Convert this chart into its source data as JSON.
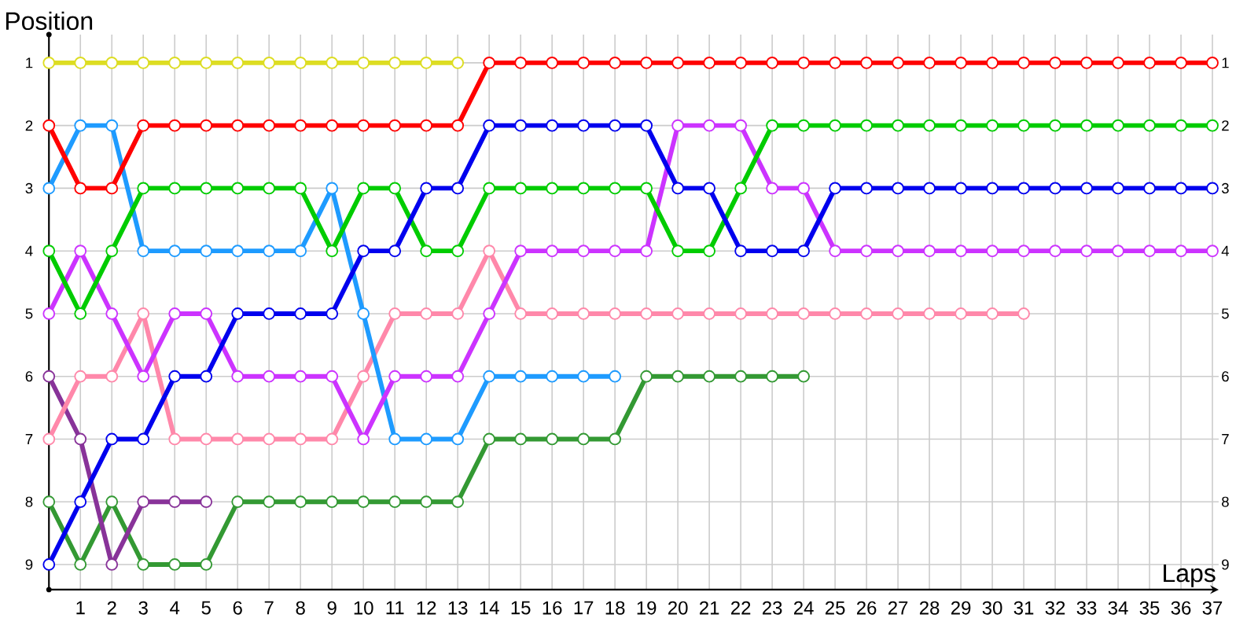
{
  "chart_data": {
    "type": "line",
    "xlabel": "Laps",
    "ylabel": "Position",
    "xlim": [
      0,
      37.2
    ],
    "ylim": [
      9.4,
      0.55
    ],
    "y2lim": [
      9.4,
      0.55
    ],
    "xticks": [
      1,
      2,
      3,
      4,
      5,
      6,
      7,
      8,
      9,
      10,
      11,
      12,
      13,
      14,
      15,
      16,
      17,
      18,
      19,
      20,
      21,
      22,
      23,
      24,
      25,
      26,
      27,
      28,
      29,
      30,
      31,
      32,
      33,
      34,
      35,
      36,
      37
    ],
    "yticks": [
      1,
      2,
      3,
      4,
      5,
      6,
      7,
      8,
      9
    ],
    "y2ticks": [
      1,
      2,
      3,
      4,
      5,
      6,
      7,
      8,
      9
    ],
    "grid": true,
    "marker": "circle",
    "line_style": "solid",
    "series": [
      {
        "color": "#dddd22",
        "x": [
          0,
          1,
          2,
          3,
          4,
          5,
          6,
          7,
          8,
          9,
          10,
          11,
          12,
          13
        ],
        "values": [
          1,
          1,
          1,
          1,
          1,
          1,
          1,
          1,
          1,
          1,
          1,
          1,
          1,
          1
        ]
      },
      {
        "color": "#339933",
        "x": [
          0,
          1,
          2,
          3,
          4,
          5,
          6,
          7,
          8,
          9,
          10,
          11,
          12,
          13,
          14,
          15,
          16,
          17,
          18,
          19,
          20,
          21,
          22,
          23,
          24
        ],
        "values": [
          8,
          9,
          8,
          9,
          9,
          9,
          8,
          8,
          8,
          8,
          8,
          8,
          8,
          8,
          7,
          7,
          7,
          7,
          7,
          6,
          6,
          6,
          6,
          6,
          6
        ]
      },
      {
        "color": "#883399",
        "x": [
          0,
          1,
          2,
          3,
          4,
          5
        ],
        "values": [
          6,
          7,
          9,
          8,
          8,
          8
        ]
      },
      {
        "color": "#ff88aa",
        "x": [
          0,
          1,
          2,
          3,
          4,
          5,
          6,
          7,
          8,
          9,
          10,
          11,
          12,
          13,
          14,
          15,
          16,
          17,
          18,
          19,
          20,
          21,
          22,
          23,
          24,
          25,
          26,
          27,
          28,
          29,
          30,
          31
        ],
        "values": [
          7,
          6,
          6,
          5,
          7,
          7,
          7,
          7,
          7,
          7,
          6,
          5,
          5,
          5,
          4,
          5,
          5,
          5,
          5,
          5,
          5,
          5,
          5,
          5,
          5,
          5,
          5,
          5,
          5,
          5,
          5,
          5
        ]
      },
      {
        "color": "#1e9bff",
        "x": [
          0,
          1,
          2,
          3,
          4,
          5,
          6,
          7,
          8,
          9,
          10,
          11,
          12,
          13,
          14,
          15,
          16,
          17,
          18
        ],
        "values": [
          3,
          2,
          2,
          4,
          4,
          4,
          4,
          4,
          4,
          3,
          5,
          7,
          7,
          7,
          6,
          6,
          6,
          6,
          6
        ]
      },
      {
        "color": "#cc33ff",
        "x": [
          0,
          1,
          2,
          3,
          4,
          5,
          6,
          7,
          8,
          9,
          10,
          11,
          12,
          13,
          14,
          15,
          16,
          17,
          18,
          19,
          20,
          21,
          22,
          23,
          24,
          25,
          26,
          27,
          28,
          29,
          30,
          31,
          32,
          33,
          34,
          35,
          36,
          37
        ],
        "values": [
          5,
          4,
          5,
          6,
          5,
          5,
          6,
          6,
          6,
          6,
          7,
          6,
          6,
          6,
          5,
          4,
          4,
          4,
          4,
          4,
          2,
          2,
          2,
          3,
          3,
          4,
          4,
          4,
          4,
          4,
          4,
          4,
          4,
          4,
          4,
          4,
          4,
          4
        ]
      },
      {
        "color": "#00cc00",
        "x": [
          0,
          1,
          2,
          3,
          4,
          5,
          6,
          7,
          8,
          9,
          10,
          11,
          12,
          13,
          14,
          15,
          16,
          17,
          18,
          19,
          20,
          21,
          22,
          23,
          24,
          25,
          26,
          27,
          28,
          29,
          30,
          31,
          32,
          33,
          34,
          35,
          36,
          37
        ],
        "values": [
          4,
          5,
          4,
          3,
          3,
          3,
          3,
          3,
          3,
          4,
          3,
          3,
          4,
          4,
          3,
          3,
          3,
          3,
          3,
          3,
          4,
          4,
          3,
          2,
          2,
          2,
          2,
          2,
          2,
          2,
          2,
          2,
          2,
          2,
          2,
          2,
          2,
          2
        ]
      },
      {
        "color": "#0000ee",
        "x": [
          0,
          1,
          2,
          3,
          4,
          5,
          6,
          7,
          8,
          9,
          10,
          11,
          12,
          13,
          14,
          15,
          16,
          17,
          18,
          19,
          20,
          21,
          22,
          23,
          24,
          25,
          26,
          27,
          28,
          29,
          30,
          31,
          32,
          33,
          34,
          35,
          36,
          37
        ],
        "values": [
          9,
          8,
          7,
          7,
          6,
          6,
          5,
          5,
          5,
          5,
          4,
          4,
          3,
          3,
          2,
          2,
          2,
          2,
          2,
          2,
          3,
          3,
          4,
          4,
          4,
          3,
          3,
          3,
          3,
          3,
          3,
          3,
          3,
          3,
          3,
          3,
          3,
          3
        ]
      },
      {
        "color": "#ff0000",
        "x": [
          0,
          1,
          2,
          3,
          4,
          5,
          6,
          7,
          8,
          9,
          10,
          11,
          12,
          13,
          14,
          15,
          16,
          17,
          18,
          19,
          20,
          21,
          22,
          23,
          24,
          25,
          26,
          27,
          28,
          29,
          30,
          31,
          32,
          33,
          34,
          35,
          36,
          37
        ],
        "values": [
          2,
          3,
          3,
          2,
          2,
          2,
          2,
          2,
          2,
          2,
          2,
          2,
          2,
          2,
          1,
          1,
          1,
          1,
          1,
          1,
          1,
          1,
          1,
          1,
          1,
          1,
          1,
          1,
          1,
          1,
          1,
          1,
          1,
          1,
          1,
          1,
          1,
          1
        ]
      }
    ]
  }
}
